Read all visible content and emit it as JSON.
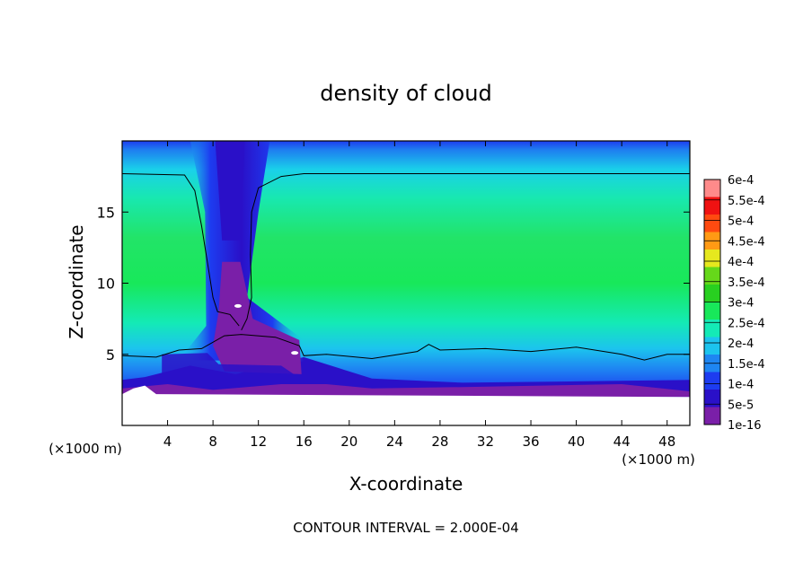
{
  "chart_data": {
    "type": "heatmap",
    "title": "density of cloud",
    "xlabel": "X-coordinate",
    "ylabel": "Z-coordinate",
    "x_unit": "(×1000 m)",
    "y_unit": "(×1000 m)",
    "xlim": [
      0,
      50
    ],
    "ylim": [
      0,
      20
    ],
    "x_ticks": [
      4,
      8,
      12,
      16,
      20,
      24,
      28,
      32,
      36,
      40,
      44,
      48
    ],
    "y_ticks": [
      5,
      10,
      15
    ],
    "footer": "CONTOUR INTERVAL = 2.000E-04",
    "colorbar": {
      "levels": [
        "1e-16",
        "5e-5",
        "1e-4",
        "1.5e-4",
        "2e-4",
        "2.5e-4",
        "3e-4",
        "3.5e-4",
        "4e-4",
        "4.5e-4",
        "5e-4",
        "5.5e-4",
        "6e-4"
      ],
      "colors": [
        "#7a1fa8",
        "#2a10c8",
        "#1d3cf0",
        "#1e86f2",
        "#1cc4ee",
        "#14eab6",
        "#18e85a",
        "#28d020",
        "#66d81a",
        "#e6e81e",
        "#ff9a14",
        "#ff4a10",
        "#f01212",
        "#ff8a8a"
      ]
    },
    "field_summary": {
      "ground_clear_region_top_km": 2,
      "anvil_top_contour_km": 17.7,
      "cloud_base_contour_km": 5.2,
      "updraft_column_x_km": [
        7,
        12
      ],
      "outflow_edge_x_km": 16
    }
  }
}
